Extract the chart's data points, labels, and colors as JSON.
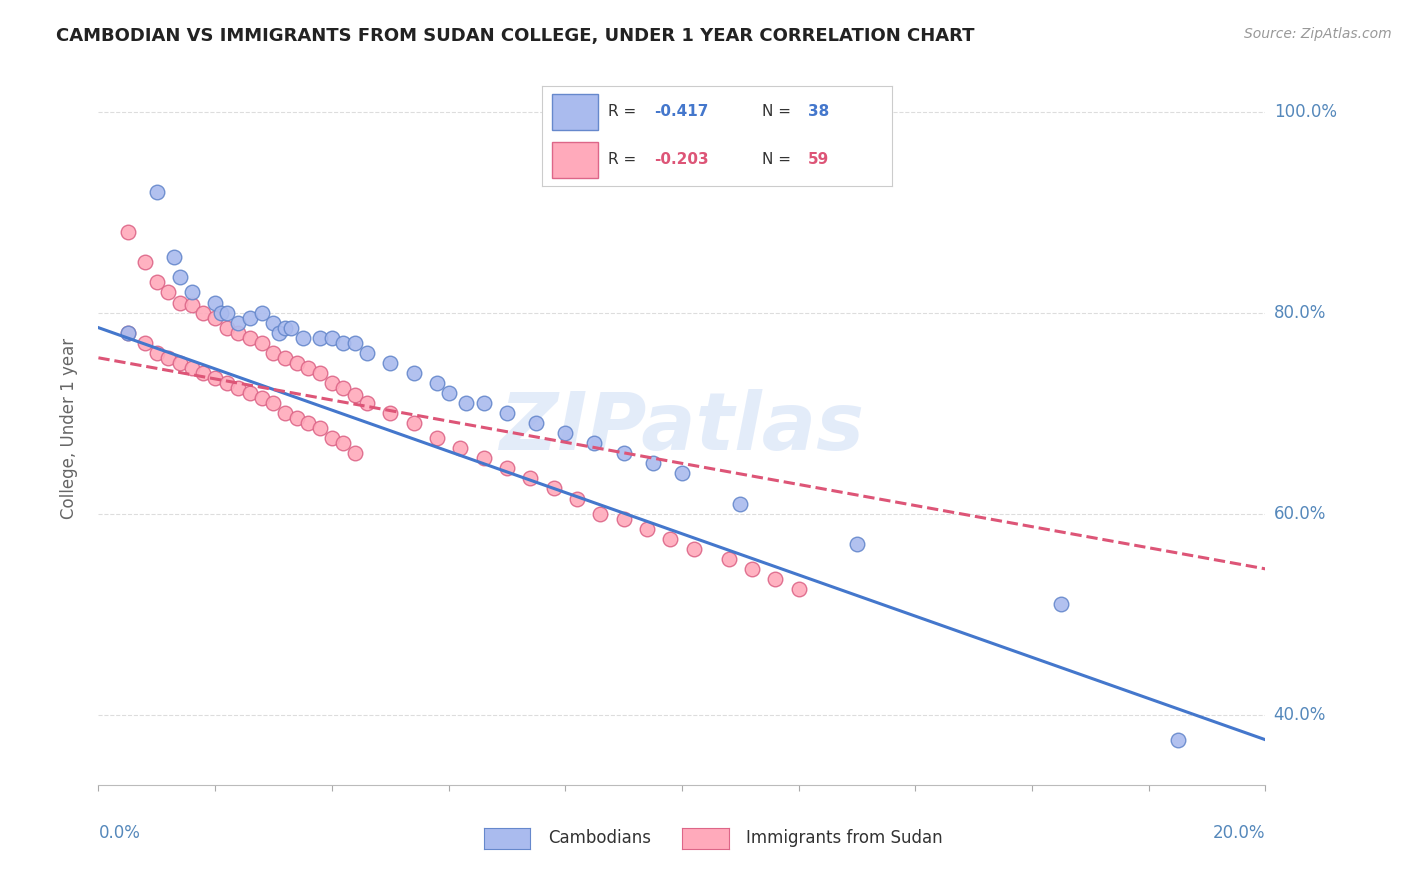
{
  "title": "CAMBODIAN VS IMMIGRANTS FROM SUDAN COLLEGE, UNDER 1 YEAR CORRELATION CHART",
  "source": "Source: ZipAtlas.com",
  "ylabel": "College, Under 1 year",
  "watermark": "ZIPatlas",
  "r_blue": "-0.417",
  "n_blue": "38",
  "r_pink": "-0.203",
  "n_pink": "59",
  "cambodian_x": [
    0.005,
    0.01,
    0.013,
    0.014,
    0.016,
    0.02,
    0.021,
    0.022,
    0.024,
    0.026,
    0.028,
    0.03,
    0.031,
    0.032,
    0.033,
    0.035,
    0.038,
    0.04,
    0.042,
    0.044,
    0.046,
    0.05,
    0.054,
    0.058,
    0.06,
    0.063,
    0.066,
    0.07,
    0.075,
    0.08,
    0.085,
    0.09,
    0.095,
    0.1,
    0.11,
    0.13,
    0.165,
    0.185
  ],
  "cambodian_y": [
    0.78,
    0.92,
    0.855,
    0.835,
    0.82,
    0.81,
    0.8,
    0.8,
    0.79,
    0.795,
    0.8,
    0.79,
    0.78,
    0.785,
    0.785,
    0.775,
    0.775,
    0.775,
    0.77,
    0.77,
    0.76,
    0.75,
    0.74,
    0.73,
    0.72,
    0.71,
    0.71,
    0.7,
    0.69,
    0.68,
    0.67,
    0.66,
    0.65,
    0.64,
    0.61,
    0.57,
    0.51,
    0.375
  ],
  "sudan_x": [
    0.005,
    0.008,
    0.01,
    0.012,
    0.014,
    0.016,
    0.018,
    0.02,
    0.022,
    0.024,
    0.026,
    0.028,
    0.03,
    0.032,
    0.034,
    0.036,
    0.038,
    0.04,
    0.042,
    0.044,
    0.046,
    0.05,
    0.054,
    0.058,
    0.062,
    0.066,
    0.07,
    0.074,
    0.078,
    0.082,
    0.086,
    0.09,
    0.094,
    0.098,
    0.102,
    0.108,
    0.112,
    0.116,
    0.12,
    0.005,
    0.008,
    0.01,
    0.012,
    0.014,
    0.016,
    0.018,
    0.02,
    0.022,
    0.024,
    0.026,
    0.028,
    0.03,
    0.032,
    0.034,
    0.036,
    0.038,
    0.04,
    0.042,
    0.044
  ],
  "sudan_y": [
    0.88,
    0.85,
    0.83,
    0.82,
    0.81,
    0.808,
    0.8,
    0.795,
    0.785,
    0.78,
    0.775,
    0.77,
    0.76,
    0.755,
    0.75,
    0.745,
    0.74,
    0.73,
    0.725,
    0.718,
    0.71,
    0.7,
    0.69,
    0.675,
    0.665,
    0.655,
    0.645,
    0.635,
    0.625,
    0.615,
    0.6,
    0.595,
    0.585,
    0.575,
    0.565,
    0.555,
    0.545,
    0.535,
    0.525,
    0.78,
    0.77,
    0.76,
    0.755,
    0.75,
    0.745,
    0.74,
    0.735,
    0.73,
    0.725,
    0.72,
    0.715,
    0.71,
    0.7,
    0.695,
    0.69,
    0.685,
    0.675,
    0.67,
    0.66
  ],
  "blue_line_x": [
    0.0,
    0.2
  ],
  "blue_line_y": [
    0.785,
    0.375
  ],
  "pink_line_x": [
    0.0,
    0.2
  ],
  "pink_line_y": [
    0.755,
    0.545
  ],
  "blue_line_color": "#4477cc",
  "pink_line_color": "#dd5577",
  "blue_dot_face": "#aabbee",
  "blue_dot_edge": "#6688cc",
  "pink_dot_face": "#ffaabb",
  "pink_dot_edge": "#dd6688",
  "background_color": "#ffffff",
  "grid_color": "#dddddd",
  "title_color": "#222222",
  "axis_label_color": "#5588bb",
  "ylabel_color": "#666666",
  "xlim": [
    0.0,
    0.2
  ],
  "ylim": [
    0.33,
    1.04
  ],
  "yticks": [
    0.4,
    0.6,
    0.8,
    1.0
  ],
  "ytick_labels": [
    "40.0%",
    "60.0%",
    "80.0%",
    "100.0%"
  ],
  "xtick_count": 11,
  "dot_size": 110
}
